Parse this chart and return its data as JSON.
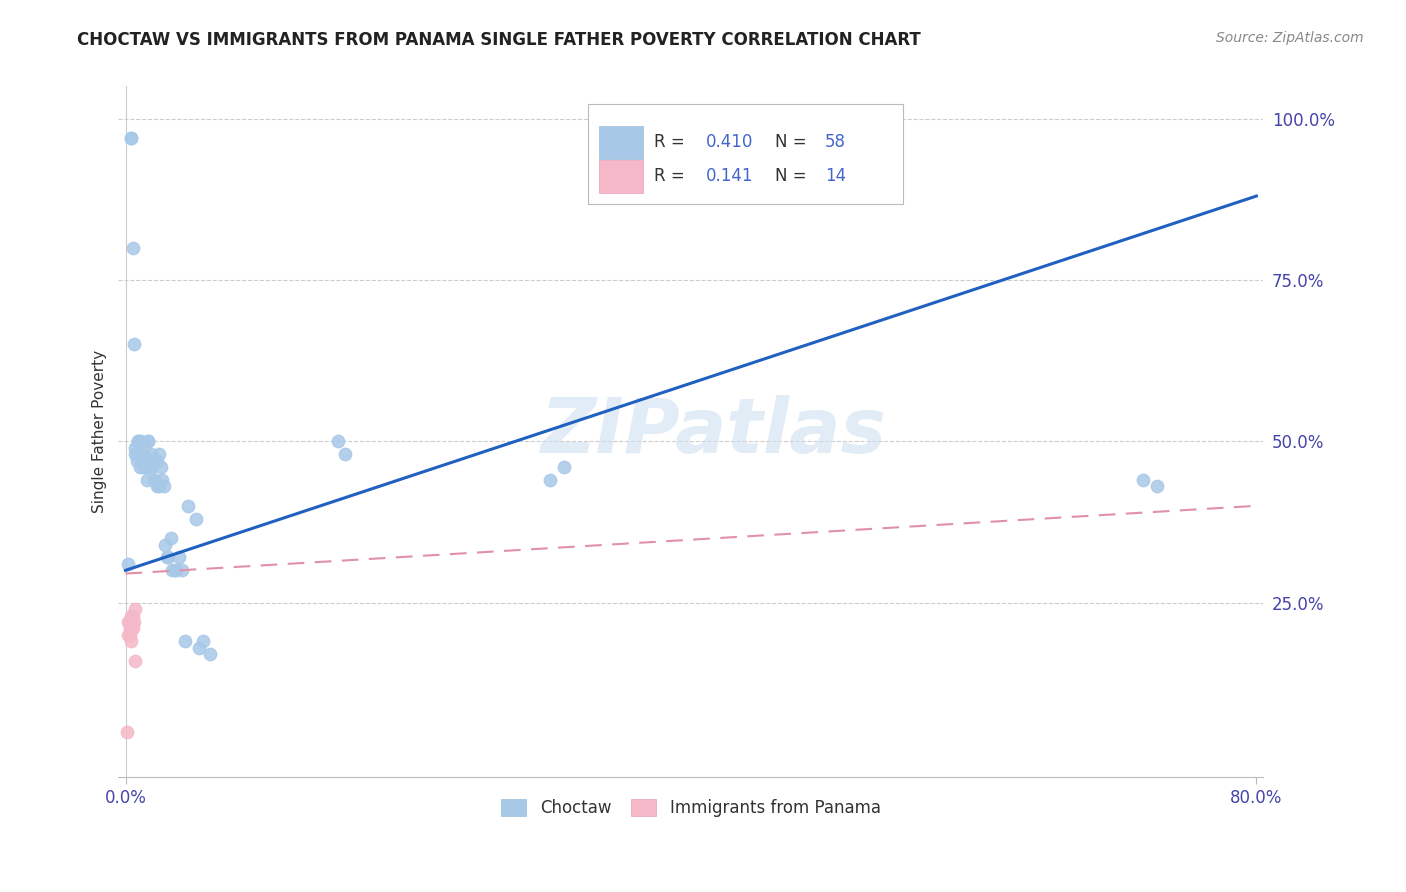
{
  "title": "CHOCTAW VS IMMIGRANTS FROM PANAMA SINGLE FATHER POVERTY CORRELATION CHART",
  "source": "Source: ZipAtlas.com",
  "ylabel": "Single Father Poverty",
  "right_yticks": [
    "100.0%",
    "75.0%",
    "50.0%",
    "25.0%"
  ],
  "right_ytick_vals": [
    1.0,
    0.75,
    0.5,
    0.25
  ],
  "choctaw_color": "#a8c8e8",
  "panama_color": "#f5b8c8",
  "trend_blue": "#2060c0",
  "trend_pink": "#e090a8",
  "watermark": "ZIPatlas",
  "xlim": [
    0.0,
    0.8
  ],
  "ylim": [
    0.0,
    1.05
  ],
  "choctaw_x": [
    0.002,
    0.004,
    0.004,
    0.005,
    0.006,
    0.007,
    0.007,
    0.008,
    0.008,
    0.009,
    0.009,
    0.01,
    0.01,
    0.011,
    0.011,
    0.012,
    0.013,
    0.013,
    0.014,
    0.014,
    0.015,
    0.015,
    0.016,
    0.016,
    0.017,
    0.018,
    0.018,
    0.019,
    0.02,
    0.021,
    0.022,
    0.022,
    0.024,
    0.024,
    0.025,
    0.026,
    0.027,
    0.028,
    0.029,
    0.03,
    0.032,
    0.033,
    0.035,
    0.036,
    0.038,
    0.04,
    0.042,
    0.044,
    0.05,
    0.052,
    0.055,
    0.06,
    0.15,
    0.155,
    0.3,
    0.31,
    0.72,
    0.73
  ],
  "choctaw_y": [
    0.31,
    0.97,
    0.97,
    0.8,
    0.65,
    0.49,
    0.48,
    0.47,
    0.48,
    0.5,
    0.5,
    0.48,
    0.46,
    0.48,
    0.5,
    0.47,
    0.46,
    0.48,
    0.46,
    0.47,
    0.44,
    0.47,
    0.5,
    0.5,
    0.47,
    0.46,
    0.48,
    0.46,
    0.44,
    0.44,
    0.47,
    0.43,
    0.43,
    0.48,
    0.46,
    0.44,
    0.43,
    0.34,
    0.32,
    0.32,
    0.35,
    0.3,
    0.3,
    0.3,
    0.32,
    0.3,
    0.19,
    0.4,
    0.38,
    0.18,
    0.19,
    0.17,
    0.5,
    0.48,
    0.44,
    0.46,
    0.44,
    0.43
  ],
  "panama_x": [
    0.001,
    0.002,
    0.002,
    0.003,
    0.003,
    0.003,
    0.004,
    0.004,
    0.004,
    0.005,
    0.005,
    0.006,
    0.007,
    0.007
  ],
  "panama_y": [
    0.05,
    0.2,
    0.22,
    0.2,
    0.21,
    0.22,
    0.19,
    0.21,
    0.23,
    0.21,
    0.23,
    0.22,
    0.16,
    0.24
  ],
  "blue_line_x0": 0.0,
  "blue_line_y0": 0.3,
  "blue_line_x1": 0.8,
  "blue_line_y1": 0.88,
  "pink_line_x0": 0.0,
  "pink_line_y0": 0.295,
  "pink_line_x1": 0.8,
  "pink_line_y1": 0.4
}
